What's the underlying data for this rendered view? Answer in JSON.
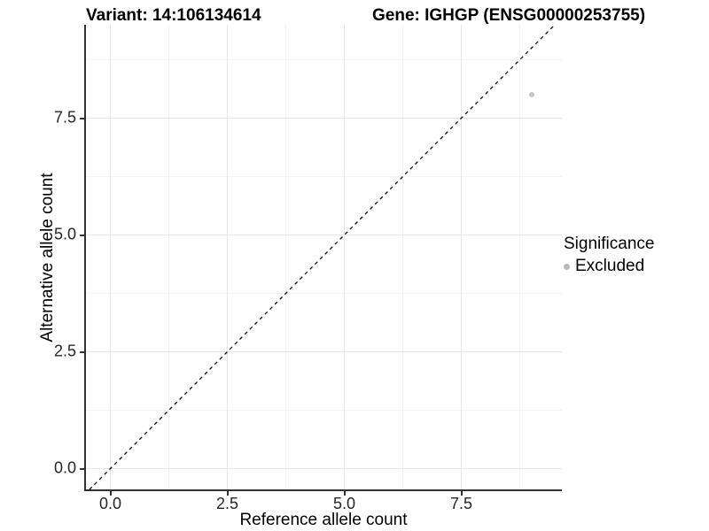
{
  "titles": {
    "variant": "Variant: 14:106134614",
    "gene": "Gene: IGHGP (ENSG00000253755)"
  },
  "chart_data": {
    "type": "scatter",
    "xlabel": "Reference allele count",
    "ylabel": "Alternative allele count",
    "x_ticks": {
      "values": [
        0,
        2.5,
        5,
        7.5
      ],
      "labels": [
        "0.0",
        "2.5",
        "5.0",
        "7.5"
      ]
    },
    "y_ticks": {
      "values": [
        0,
        2.5,
        5,
        7.5
      ],
      "labels": [
        "0.0",
        "2.5",
        "5.0",
        "7.5"
      ]
    },
    "x_minor_ticks": [
      1.25,
      3.75,
      6.25,
      8.75
    ],
    "y_minor_ticks": [
      1.25,
      3.75,
      6.25,
      8.75
    ],
    "xlim": [
      -0.52,
      9.65
    ],
    "ylim": [
      -0.46,
      9.5
    ],
    "grid": true,
    "series": [
      {
        "name": "Excluded",
        "color": "#c6c6c6",
        "points": [
          {
            "x": 9,
            "y": 8
          }
        ]
      }
    ],
    "reference_line": {
      "type": "identity y=x",
      "style": "dashed",
      "color": "#000000"
    },
    "legend": {
      "title": "Significance",
      "position": "right",
      "items": [
        {
          "label": "Excluded",
          "color": "#b9b9b9"
        }
      ]
    }
  }
}
